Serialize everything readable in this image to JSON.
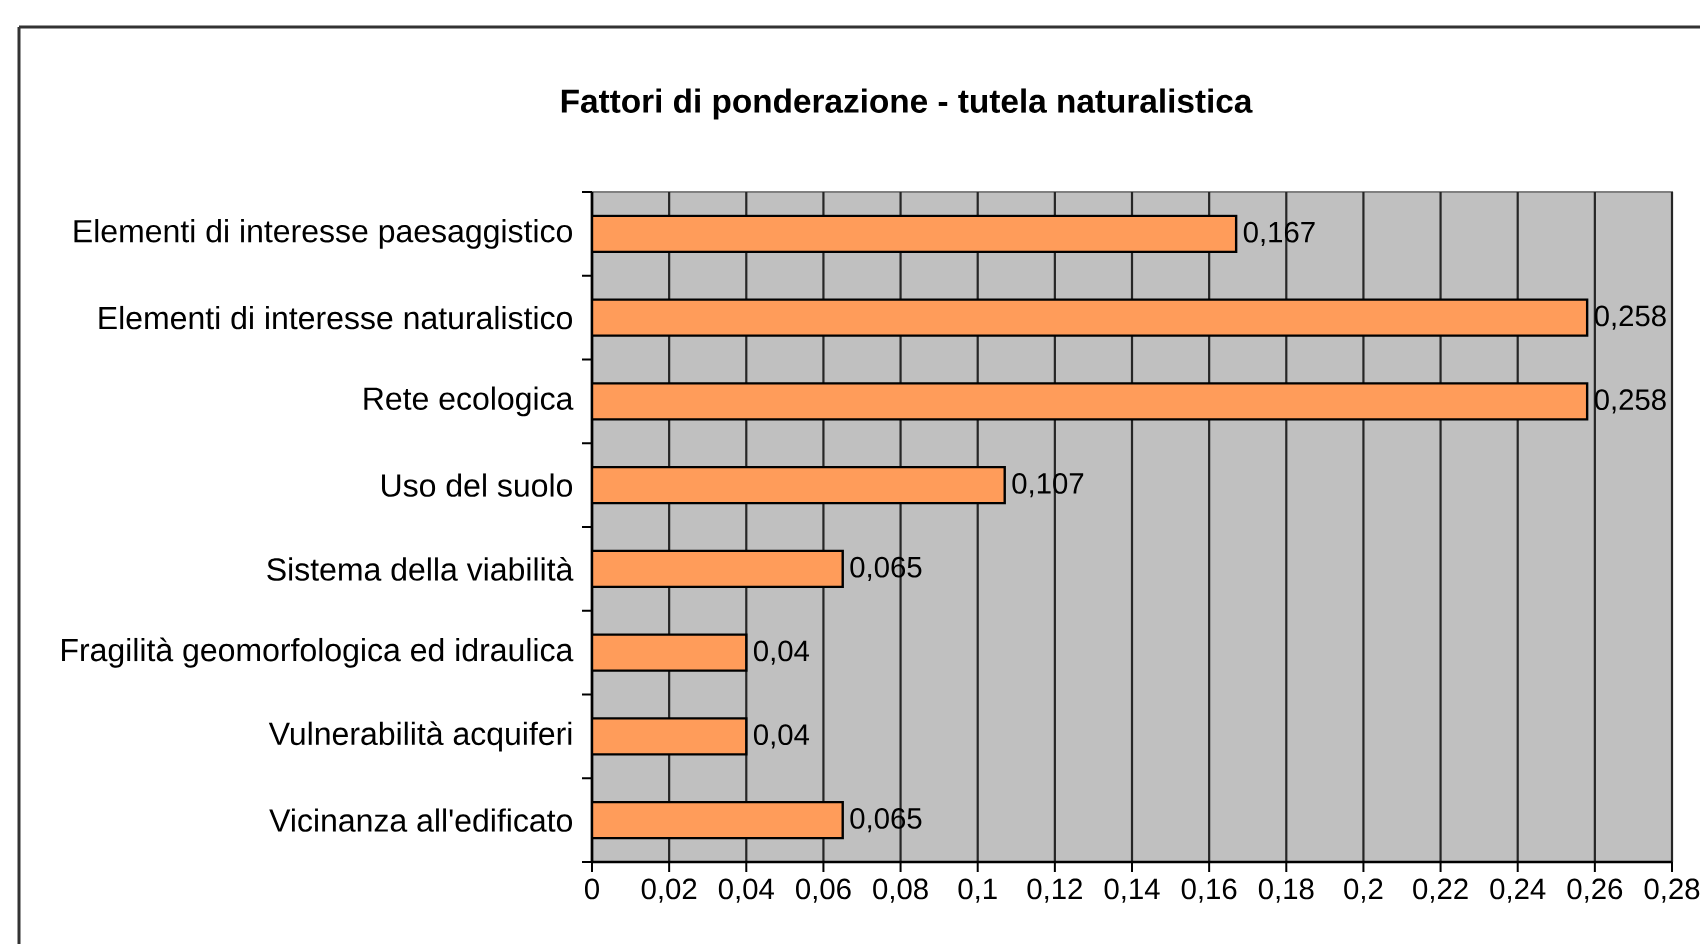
{
  "chart_data": {
    "type": "bar",
    "orientation": "horizontal",
    "title": "Fattori di ponderazione - tutela naturalistica",
    "categories": [
      "Elementi di interesse paesaggistico",
      "Elementi di interesse naturalistico",
      "Rete ecologica",
      "Uso del suolo",
      "Sistema della viabilità",
      "Fragilità geomorfologica ed idraulica",
      "Vulnerabilità acquiferi",
      "Vicinanza all'edificato"
    ],
    "values": [
      0.167,
      0.258,
      0.258,
      0.107,
      0.065,
      0.04,
      0.04,
      0.065
    ],
    "value_labels": [
      "0,167",
      "0,258",
      "0,258",
      "0,107",
      "0,065",
      "0,04",
      "0,04",
      "0,065"
    ],
    "color": "#ff9c5a",
    "xlim": [
      0,
      0.28
    ],
    "xticks": [
      0,
      {
        "value": 0.02,
        "label": "0,02"
      },
      {
        "value": 0.04,
        "label": "0,04"
      },
      {
        "value": 0.06,
        "label": "0,06"
      },
      {
        "value": 0.08,
        "label": "0,08"
      },
      {
        "value": 0.1,
        "label": "0,1"
      },
      {
        "value": 0.12,
        "label": "0,12"
      },
      {
        "value": 0.14,
        "label": "0,14"
      },
      {
        "value": 0.16,
        "label": "0,16"
      },
      {
        "value": 0.18,
        "label": "0,18"
      },
      {
        "value": 0.2,
        "label": "0,2"
      },
      {
        "value": 0.22,
        "label": "0,22"
      },
      {
        "value": 0.24,
        "label": "0,24"
      },
      {
        "value": 0.26,
        "label": "0,26"
      },
      {
        "value": 0.28,
        "label": "0,28"
      }
    ],
    "grid": "x"
  }
}
